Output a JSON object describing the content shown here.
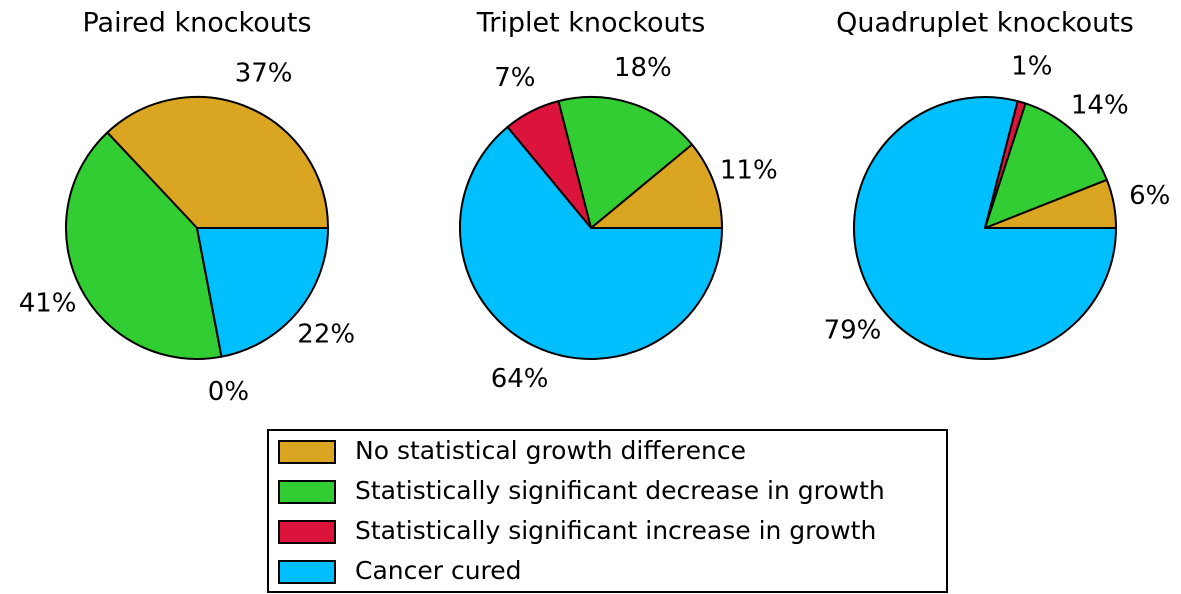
{
  "chart_data": [
    {
      "type": "pie",
      "title": "Paired knockouts",
      "values": [
        37,
        41,
        0,
        22
      ],
      "value_labels": [
        "37%",
        "41%",
        "0%",
        "22%"
      ]
    },
    {
      "type": "pie",
      "title": "Triplet knockouts",
      "values": [
        11,
        18,
        7,
        64
      ],
      "value_labels": [
        "11%",
        "18%",
        "7%",
        "64%"
      ]
    },
    {
      "type": "pie",
      "title": "Quadruplet knockouts",
      "values": [
        6,
        14,
        1,
        79
      ],
      "value_labels": [
        "6%",
        "14%",
        "1%",
        "79%"
      ]
    }
  ],
  "legend": {
    "labels": [
      "No statistical growth difference",
      "Statistically significant decrease in growth",
      "Statistically significant increase in growth",
      "Cancer cured"
    ],
    "colors": [
      "#daa520",
      "#32cd32",
      "#dc143c",
      "#00bfff"
    ]
  }
}
